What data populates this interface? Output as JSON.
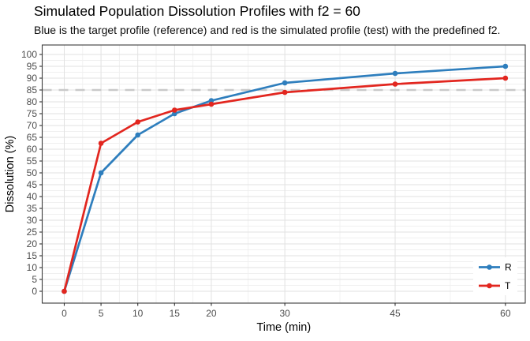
{
  "chart_data": {
    "type": "line",
    "title": "Simulated Population Dissolution Profiles with f2 = 60",
    "subtitle": "Blue is the target profile (reference) and red is the simulated profile (test) with the predefined f2.",
    "xlabel": "Time (min)",
    "ylabel": "Dissolution (%)",
    "x": [
      0,
      5,
      10,
      15,
      20,
      30,
      45,
      60
    ],
    "series": [
      {
        "name": "R",
        "role": "reference-profile",
        "color": "#2e7ebd",
        "values": [
          0,
          50,
          66,
          75,
          80.5,
          88,
          92,
          95
        ]
      },
      {
        "name": "T",
        "role": "test-profile",
        "color": "#e2261f",
        "values": [
          0,
          62.5,
          71.5,
          76.5,
          79,
          84,
          87.5,
          90
        ]
      }
    ],
    "reference_line": {
      "y": 85,
      "color": "#c9c9c9",
      "style": "dashed"
    },
    "axes": {
      "x_ticks": [
        0,
        5,
        10,
        15,
        20,
        30,
        45,
        60
      ],
      "x_minor": [
        2.5,
        7.5,
        12.5,
        17.5,
        25,
        37.5,
        52.5
      ],
      "y_ticks": [
        0,
        5,
        10,
        15,
        20,
        25,
        30,
        35,
        40,
        45,
        50,
        55,
        60,
        65,
        70,
        75,
        80,
        85,
        90,
        95,
        100
      ],
      "xlim": [
        -3,
        62.7
      ],
      "ylim": [
        -5,
        104
      ],
      "grid": true
    },
    "legend": {
      "position": "inside-bottom-right",
      "entries": [
        "R",
        "T"
      ]
    }
  },
  "colors": {
    "background": "#ffffff",
    "panel_background": "#ffffff",
    "panel_border": "#3c3c3c",
    "grid_major": "#e2e2e2",
    "grid_minor": "#f0f0f0",
    "tick_mark": "#333333",
    "tick_label": "#4d4d4d",
    "legend_background": "#ffffff"
  }
}
